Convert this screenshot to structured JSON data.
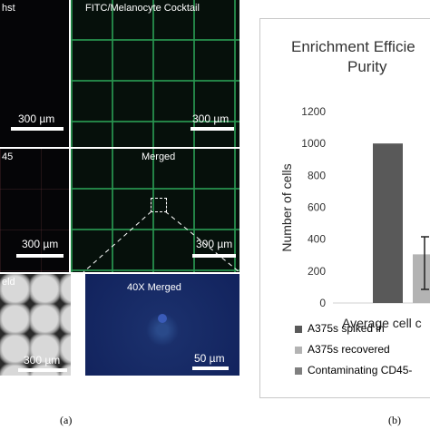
{
  "figure": {
    "panels": [
      {
        "label": "hst",
        "scalebar": "300 µm"
      },
      {
        "label": "FITC/Melanocyte Cocktail",
        "scalebar": "300 µm"
      },
      {
        "label": "45",
        "scalebar": "300 µm"
      },
      {
        "label": "Merged",
        "scalebar": "300 µm"
      },
      {
        "label": "eld",
        "scalebar": "300 µm"
      },
      {
        "label": "40X Merged",
        "scalebar": "50 µm"
      }
    ],
    "caption_a": "(a)",
    "caption_b": "(b)"
  },
  "chart_data": {
    "type": "bar",
    "title": "Enrichment Efficie Purity",
    "title_line1": "Enrichment Efficie",
    "title_line2": "Purity",
    "ylabel": "Number of cells",
    "xlabel": "Average cell c",
    "ylim": [
      0,
      1200
    ],
    "yticks": [
      "0",
      "200",
      "400",
      "600",
      "800",
      "1000",
      "1200"
    ],
    "series": [
      {
        "name": "A375s spiked in",
        "value": 1000,
        "color": "#595959"
      },
      {
        "name": "A375s recovered",
        "value": 305,
        "color": "#b3b3b3"
      },
      {
        "name": "Contaminating CD45-",
        "value": 0,
        "color": "#7f7f7f"
      }
    ],
    "legend_placement": "bottom",
    "grid": false
  },
  "colors": {
    "accent_green": "#2e9a52",
    "bar_dark": "#595959",
    "bar_light": "#b3b3b3"
  }
}
